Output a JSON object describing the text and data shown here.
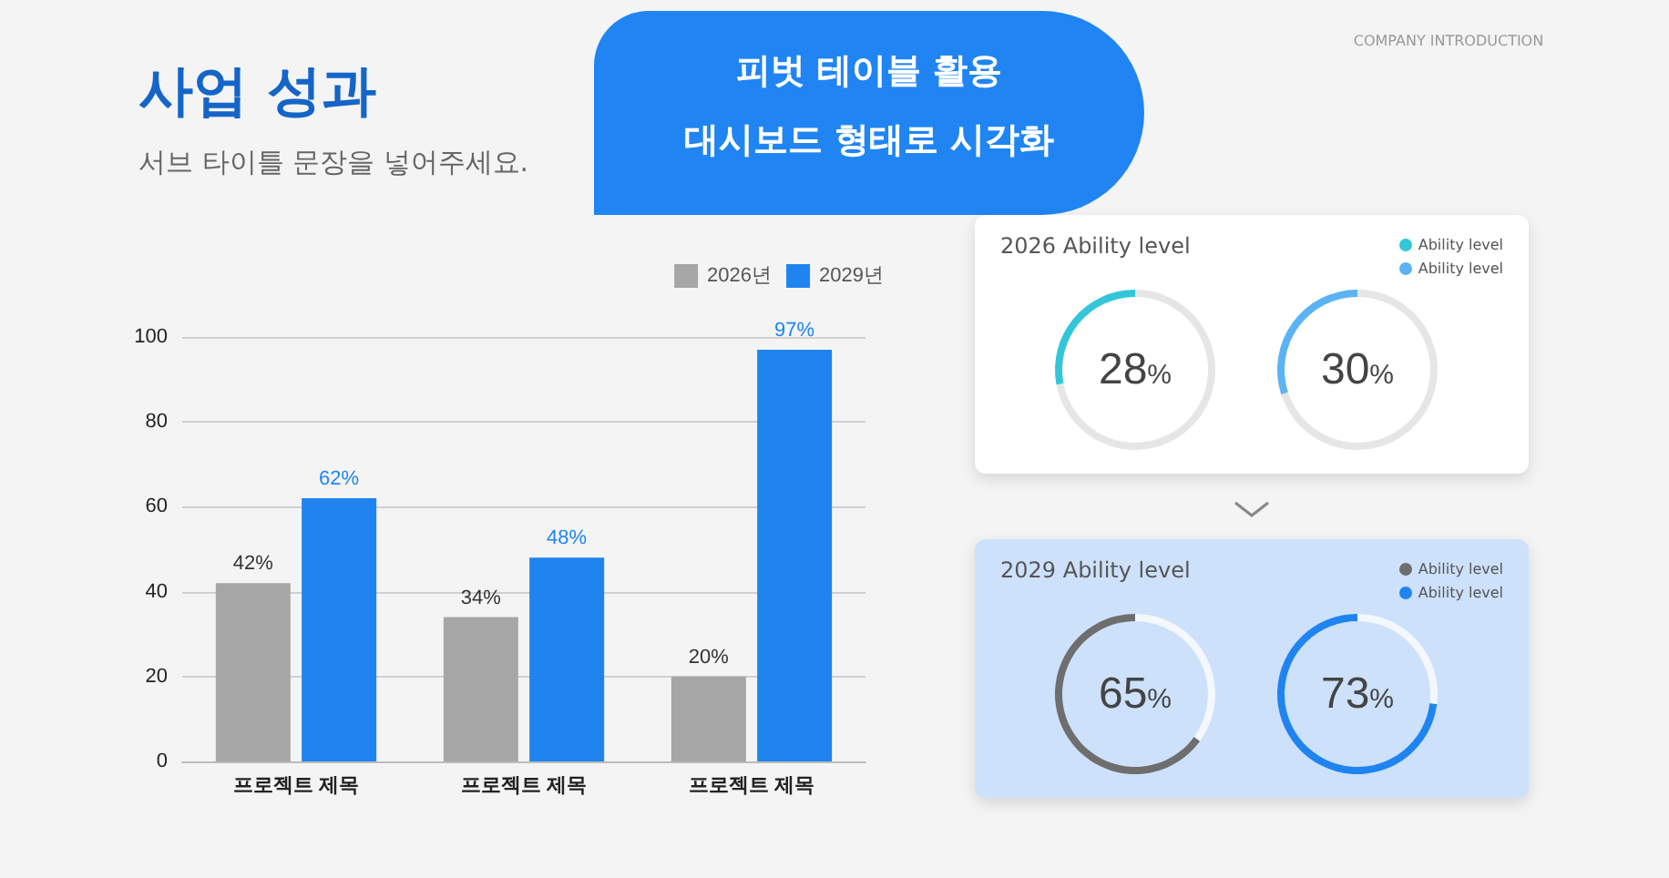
{
  "chart_data": [
    {
      "type": "bar",
      "title": "사업 성과",
      "subtitle": "서브 타이틀 문장을 넣어주세요.",
      "annotations": [
        "피벗 테이블 활용\n대시보드 형태로 시각화",
        "COMPANY INTRODUCTION"
      ],
      "categories": [
        "프로젝트 제목",
        "프로젝트 제목",
        "프로젝트 제목"
      ],
      "series": [
        {
          "name": "2026년",
          "color": "#a6a6a6",
          "values": [
            42,
            34,
            20
          ],
          "value_labels": [
            "42%",
            "34%",
            "20%"
          ]
        },
        {
          "name": "2029년",
          "color": "#1f84f0",
          "values": [
            62,
            48,
            97
          ],
          "value_labels": [
            "62%",
            "48%",
            "97%"
          ]
        }
      ],
      "ylim": [
        0,
        100
      ],
      "yticks": [
        0,
        20,
        40,
        60,
        80,
        100
      ],
      "grid": "y",
      "legend": "top right"
    },
    {
      "type": "donut",
      "title": "2026 Ability level",
      "categories": [
        null,
        null
      ],
      "legend": "top right",
      "series": [
        {
          "name": "Ability level",
          "colors": [
            "#33c6d9",
            "#e6e6e6"
          ],
          "values": [
            28,
            72
          ],
          "value_labels": [
            "28%",
            null
          ]
        },
        {
          "name": "Ability level",
          "colors": [
            "#5cb3f3",
            "#e6e6e6"
          ],
          "values": [
            30,
            70
          ],
          "value_labels": [
            "30%",
            null
          ]
        }
      ]
    },
    {
      "type": "donut",
      "title": "2029 Ability level",
      "categories": [
        null,
        null
      ],
      "legend": "top right",
      "series": [
        {
          "name": "Ability level",
          "colors": [
            "#6e6e6e",
            "#f4f8fd"
          ],
          "values": [
            65,
            35
          ],
          "value_labels": [
            "65%",
            null
          ]
        },
        {
          "name": "Ability level",
          "colors": [
            "#1f84f0",
            "#f4f8fd"
          ],
          "values": [
            73,
            27
          ],
          "value_labels": [
            "73%",
            null
          ]
        }
      ]
    }
  ]
}
